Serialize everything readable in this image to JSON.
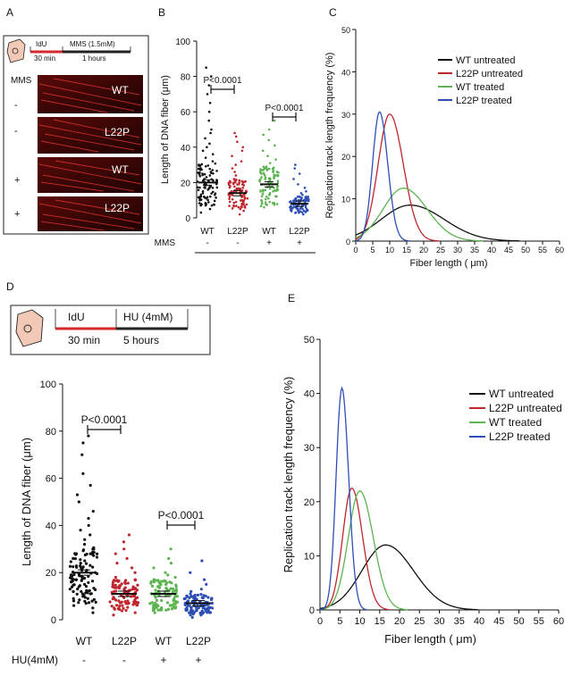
{
  "panels": {
    "A": {
      "letter": "A",
      "timeline": {
        "step1": "IdU",
        "step1_time": "30 min",
        "step2": "MMS (1.5mM)",
        "step2_time": "1 hours"
      },
      "treatment_label": "MMS",
      "rows": [
        {
          "sign": "-",
          "genotype": "WT"
        },
        {
          "sign": "-",
          "genotype": "L22P"
        },
        {
          "sign": "+",
          "genotype": "WT"
        },
        {
          "sign": "+",
          "genotype": "L22P"
        }
      ]
    },
    "D": {
      "letter": "D",
      "timeline": {
        "step1": "IdU",
        "step1_time": "30 min",
        "step2": "HU (4mM)",
        "step2_time": "5 hours"
      }
    },
    "B": {
      "letter": "B"
    },
    "C": {
      "letter": "C"
    },
    "E": {
      "letter": "E"
    }
  },
  "colors": {
    "wt_untreated": "#111111",
    "l22p_untreated": "#c0262d",
    "wt_treated": "#5bb450",
    "l22p_treated": "#2d4fb5",
    "timeline_red": "#d42a2f",
    "cell_fill": "#f1c9b6"
  },
  "chart_data": [
    {
      "id": "B",
      "type": "scatter",
      "ylabel": "Length of DNA fiber (μm)",
      "ylim": [
        0,
        100
      ],
      "yticks": [
        0,
        20,
        40,
        60,
        80,
        100
      ],
      "categories": [
        "WT",
        "L22P",
        "WT",
        "L22P"
      ],
      "treatment_row_label": "MMS",
      "treatment_signs": [
        "-",
        "-",
        "+",
        "+"
      ],
      "group_means": [
        20,
        14,
        19,
        8
      ],
      "series": [
        {
          "values": [
            3,
            5,
            7,
            8,
            10,
            11,
            12,
            13,
            14,
            15,
            16,
            17,
            18,
            19,
            20,
            20,
            21,
            22,
            23,
            24,
            25,
            26,
            27,
            28,
            30,
            32,
            34,
            36,
            38,
            40,
            42,
            45,
            48,
            50,
            55,
            60,
            65,
            70,
            75,
            80,
            85
          ]
        },
        {
          "values": [
            2,
            4,
            5,
            6,
            7,
            8,
            9,
            10,
            11,
            12,
            13,
            14,
            15,
            16,
            17,
            18,
            19,
            20,
            22,
            24,
            26,
            28,
            30,
            32,
            35,
            38,
            40,
            43,
            46,
            48
          ]
        },
        {
          "values": [
            6,
            8,
            9,
            10,
            11,
            12,
            13,
            14,
            15,
            16,
            17,
            18,
            19,
            20,
            21,
            22,
            23,
            24,
            25,
            27,
            29,
            31,
            33,
            35,
            38,
            41,
            44,
            47,
            50,
            55
          ]
        },
        {
          "values": [
            2,
            3,
            4,
            5,
            5,
            6,
            6,
            7,
            7,
            8,
            8,
            9,
            9,
            10,
            11,
            12,
            13,
            14,
            15,
            17,
            19,
            22,
            25,
            28,
            30
          ]
        }
      ],
      "annotations": [
        {
          "text": "P<0.0001",
          "from": 0,
          "to": 1
        },
        {
          "text": "P<0.0001",
          "from": 2,
          "to": 3
        }
      ]
    },
    {
      "id": "C",
      "type": "line",
      "xlabel": "Fiber length ( μm)",
      "ylabel": "Replication track length frequency (%)",
      "xlim": [
        0,
        60
      ],
      "ylim": [
        0,
        50
      ],
      "xticks": [
        0,
        5,
        10,
        15,
        20,
        25,
        30,
        35,
        40,
        45,
        50,
        55,
        60
      ],
      "yticks": [
        0,
        10,
        20,
        30,
        40,
        50
      ],
      "legend_position": "top-right",
      "series": [
        {
          "name": "WT untreated",
          "peak_x": 16,
          "peak_y": 8.5,
          "sigma": 10
        },
        {
          "name": "L22P untreated",
          "peak_x": 10,
          "peak_y": 30,
          "sigma": 4
        },
        {
          "name": "WT treated",
          "peak_x": 14,
          "peak_y": 12.5,
          "sigma": 7
        },
        {
          "name": "L22P treated",
          "peak_x": 7,
          "peak_y": 30.5,
          "sigma": 2.4
        }
      ]
    },
    {
      "id": "D",
      "type": "scatter",
      "ylabel": "Length of DNA fiber (μm)",
      "ylim": [
        0,
        100
      ],
      "yticks": [
        0,
        20,
        40,
        60,
        80,
        100
      ],
      "categories": [
        "WT",
        "L22P",
        "WT",
        "L22P"
      ],
      "treatment_row_label": "HU(4mM)",
      "treatment_signs": [
        "-",
        "-",
        "+",
        "+"
      ],
      "group_means": [
        20,
        11,
        11,
        7
      ],
      "series": [
        {
          "values": [
            3,
            5,
            6,
            8,
            9,
            10,
            11,
            12,
            13,
            14,
            15,
            16,
            17,
            18,
            19,
            20,
            21,
            22,
            23,
            24,
            25,
            26,
            28,
            30,
            32,
            34,
            36,
            38,
            40,
            43,
            46,
            50,
            53,
            57,
            62,
            70,
            75,
            78
          ]
        },
        {
          "values": [
            2,
            3,
            4,
            5,
            6,
            7,
            8,
            9,
            10,
            11,
            12,
            13,
            14,
            15,
            16,
            17,
            18,
            20,
            22,
            24,
            26,
            28,
            30,
            33,
            36
          ]
        },
        {
          "values": [
            3,
            4,
            5,
            6,
            7,
            8,
            9,
            10,
            11,
            12,
            13,
            14,
            15,
            16,
            17,
            18,
            19,
            20,
            22,
            24,
            26,
            30
          ]
        },
        {
          "values": [
            1,
            2,
            2,
            3,
            3,
            4,
            4,
            5,
            5,
            6,
            6,
            7,
            7,
            8,
            8,
            9,
            10,
            11,
            12,
            13,
            15,
            17,
            20,
            25
          ]
        }
      ],
      "annotations": [
        {
          "text": "P<0.0001",
          "from": 0,
          "to": 1
        },
        {
          "text": "P<0.0001",
          "from": 2,
          "to": 3
        }
      ]
    },
    {
      "id": "E",
      "type": "line",
      "xlabel": "Fiber length ( μm)",
      "ylabel": "Replication track length frequency (%)",
      "xlim": [
        0,
        60
      ],
      "ylim": [
        0,
        50
      ],
      "xticks": [
        0,
        5,
        10,
        15,
        20,
        25,
        30,
        35,
        40,
        45,
        50,
        55,
        60
      ],
      "yticks": [
        0,
        10,
        20,
        30,
        40,
        50
      ],
      "legend_position": "top-right",
      "series": [
        {
          "name": "WT untreated",
          "peak_x": 16.5,
          "peak_y": 12,
          "sigma": 7
        },
        {
          "name": "L22P untreated",
          "peak_x": 8,
          "peak_y": 22.5,
          "sigma": 2.7
        },
        {
          "name": "WT treated",
          "peak_x": 10,
          "peak_y": 22,
          "sigma": 3.4
        },
        {
          "name": "L22P treated",
          "peak_x": 5.5,
          "peak_y": 41,
          "sigma": 1.7
        }
      ]
    }
  ]
}
